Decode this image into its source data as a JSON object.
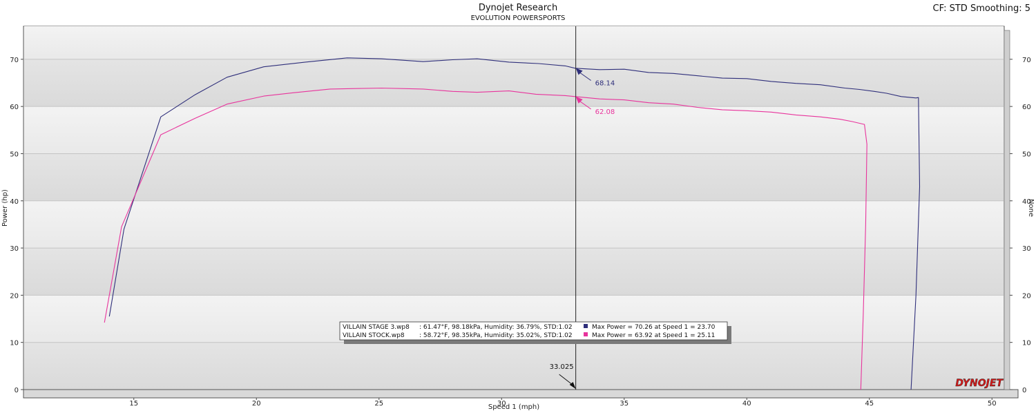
{
  "header": {
    "title": "Dynojet Research",
    "subtitle": "EVOLUTION POWERSPORTS",
    "cf_info": "CF: STD Smoothing: 5"
  },
  "colors": {
    "stage3": "#2e2e7a",
    "stock": "#e8339c",
    "plot_bg_light": "#efefef",
    "plot_bg_dark": "#dadada",
    "logo_red": "#d41a1a"
  },
  "logo_text": "DYNOJET",
  "chart_data": {
    "type": "line",
    "xlabel": "Speed 1 (mph)",
    "ylabel": "Power (hp)",
    "ylabel_right": "None",
    "xlim": [
      10.5,
      50.5
    ],
    "ylim": [
      0,
      77
    ],
    "xticks": [
      15,
      20,
      25,
      30,
      35,
      40,
      45,
      50
    ],
    "yticks": [
      0,
      10,
      20,
      30,
      40,
      50,
      60,
      70
    ],
    "grid": true,
    "cursor": {
      "x": 33.025,
      "label": "33.025",
      "values": [
        {
          "series": "VILLAIN STAGE 3.wp8",
          "label": "68.14",
          "y": 68.14
        },
        {
          "series": "VILLAIN STOCK.wp8",
          "label": "62.08",
          "y": 62.08
        }
      ]
    },
    "legend": {
      "placement": "bottom-center",
      "entries": [
        {
          "name": "VILLAIN STAGE 3.wp8",
          "conditions": ": 61.47°F, 98.18kPa, Humidity: 36.79%, STD:1.02",
          "max": "Max Power = 70.26 at Speed 1 = 23.70"
        },
        {
          "name": "VILLAIN STOCK.wp8",
          "conditions": ": 58.72°F, 98.35kPa, Humidity: 35.02%, STD:1.02",
          "max": "Max Power = 63.92 at Speed 1 = 25.11"
        }
      ]
    },
    "series": [
      {
        "name": "VILLAIN STAGE 3.wp8",
        "color": "#2e2e7a",
        "points": [
          [
            14.0,
            15.5
          ],
          [
            14.6,
            34.0
          ],
          [
            16.1,
            57.8
          ],
          [
            17.5,
            62.5
          ],
          [
            18.8,
            66.2
          ],
          [
            20.3,
            68.4
          ],
          [
            22.0,
            69.4
          ],
          [
            23.7,
            70.3
          ],
          [
            25.1,
            70.1
          ],
          [
            26.8,
            69.5
          ],
          [
            28.0,
            69.9
          ],
          [
            29.0,
            70.1
          ],
          [
            30.3,
            69.4
          ],
          [
            31.5,
            69.1
          ],
          [
            32.6,
            68.6
          ],
          [
            33.0,
            68.1
          ],
          [
            34.0,
            67.8
          ],
          [
            35.0,
            67.9
          ],
          [
            36.0,
            67.2
          ],
          [
            37.0,
            67.0
          ],
          [
            38.0,
            66.5
          ],
          [
            39.0,
            66.0
          ],
          [
            40.0,
            65.9
          ],
          [
            41.0,
            65.3
          ],
          [
            42.0,
            64.9
          ],
          [
            43.0,
            64.6
          ],
          [
            44.0,
            63.9
          ],
          [
            44.6,
            63.6
          ],
          [
            45.2,
            63.2
          ],
          [
            45.7,
            62.8
          ],
          [
            46.3,
            62.1
          ],
          [
            46.9,
            61.8
          ],
          [
            47.0,
            61.9
          ],
          [
            47.05,
            43.0
          ],
          [
            46.9,
            20.0
          ],
          [
            46.7,
            0.0
          ]
        ]
      },
      {
        "name": "VILLAIN STOCK.wp8",
        "color": "#e8339c",
        "points": [
          [
            13.8,
            14.2
          ],
          [
            14.5,
            34.5
          ],
          [
            16.1,
            54.0
          ],
          [
            17.5,
            57.5
          ],
          [
            18.8,
            60.5
          ],
          [
            20.3,
            62.2
          ],
          [
            21.5,
            62.9
          ],
          [
            23.0,
            63.7
          ],
          [
            25.1,
            63.9
          ],
          [
            26.8,
            63.7
          ],
          [
            28.0,
            63.2
          ],
          [
            29.0,
            63.0
          ],
          [
            30.3,
            63.3
          ],
          [
            31.4,
            62.6
          ],
          [
            32.6,
            62.3
          ],
          [
            33.0,
            62.1
          ],
          [
            34.0,
            61.6
          ],
          [
            35.0,
            61.4
          ],
          [
            36.0,
            60.8
          ],
          [
            37.0,
            60.5
          ],
          [
            38.0,
            59.8
          ],
          [
            39.0,
            59.3
          ],
          [
            40.0,
            59.1
          ],
          [
            41.0,
            58.8
          ],
          [
            42.0,
            58.2
          ],
          [
            43.0,
            57.8
          ],
          [
            43.8,
            57.3
          ],
          [
            44.3,
            56.8
          ],
          [
            44.8,
            56.2
          ],
          [
            44.9,
            52.0
          ],
          [
            44.85,
            35.0
          ],
          [
            44.75,
            16.0
          ],
          [
            44.65,
            0.0
          ]
        ]
      }
    ]
  }
}
